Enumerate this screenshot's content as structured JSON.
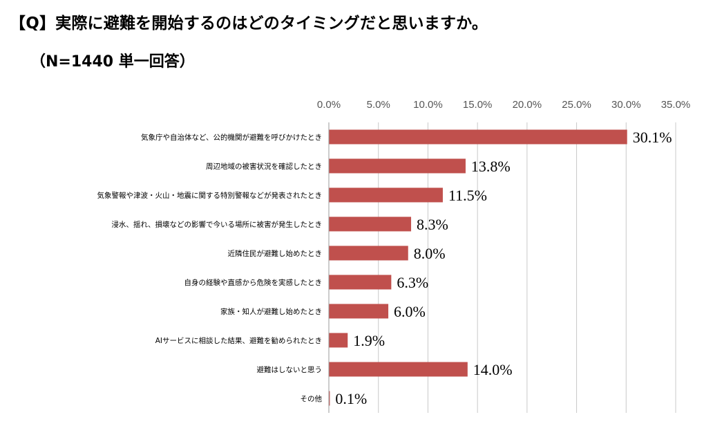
{
  "header": {
    "title": "【Q】実際に避難を開始するのはどのタイミングだと思いますか。",
    "subtitle": "（N=1440 単一回答）"
  },
  "chart_data": {
    "type": "bar",
    "orientation": "horizontal",
    "title": "【Q】実際に避難を開始するのはどのタイミングだと思いますか。",
    "subtitle": "（N=1440 単一回答）",
    "xlabel": "",
    "ylabel": "",
    "xlim": [
      0,
      35
    ],
    "x_ticks": [
      "0.0%",
      "5.0%",
      "10.0%",
      "15.0%",
      "20.0%",
      "25.0%",
      "30.0%",
      "35.0%"
    ],
    "x_axis_position": "top",
    "grid": true,
    "legend": "none",
    "bar_color": "#c0504d",
    "categories": [
      "気象庁や自治体など、公的機関が避難を呼びかけたとき",
      "周辺地域の被害状況を確認したとき",
      "気象警報や津波・火山・地震に関する特別警報などが発表されたとき",
      "浸水、揺れ、損壊などの影響で今いる場所に被害が発生したとき",
      "近隣住民が避難し始めたとき",
      "自身の経験や直感から危険を実感したとき",
      "家族・知人が避難し始めたとき",
      "AIサービスに相談した結果、避難を勧められたとき",
      "避難はしないと思う",
      "その他"
    ],
    "values": [
      30.1,
      13.8,
      11.5,
      8.3,
      8.0,
      6.3,
      6.0,
      1.9,
      14.0,
      0.1
    ],
    "value_labels": [
      "30.1%",
      "13.8%",
      "11.5%",
      "8.3%",
      "8.0%",
      "6.3%",
      "6.0%",
      "1.9%",
      "14.0%",
      "0.1%"
    ]
  }
}
